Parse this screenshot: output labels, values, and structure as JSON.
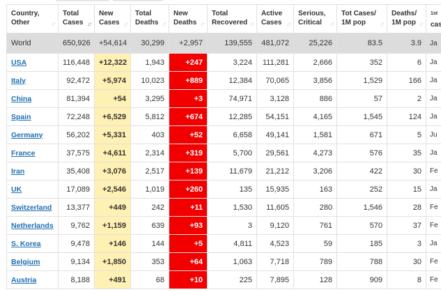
{
  "headers": [
    {
      "line1": "Country,",
      "line2": "Other"
    },
    {
      "line1": "Total",
      "line2": "Cases"
    },
    {
      "line1": "New",
      "line2": "Cases"
    },
    {
      "line1": "Total",
      "line2": "Deaths"
    },
    {
      "line1": "New",
      "line2": "Deaths"
    },
    {
      "line1": "Total",
      "line2": "Recovered"
    },
    {
      "line1": "Active",
      "line2": "Cases"
    },
    {
      "line1": "Serious,",
      "line2": "Critical"
    },
    {
      "line1": "Tot Cases/",
      "line2": "1M pop"
    },
    {
      "line1": "Deaths/",
      "line2": "1M pop"
    },
    {
      "line1": "1st",
      "line2": "cas"
    }
  ],
  "rows": [
    {
      "name": "World",
      "total_cases": "650,926",
      "new_cases": "+54,614",
      "total_deaths": "30,299",
      "new_deaths": "+2,957",
      "total_recovered": "139,555",
      "active_cases": "481,072",
      "serious": "25,226",
      "cases_per_1m": "83.5",
      "deaths_per_1m": "3.9",
      "first_case": "Ja"
    },
    {
      "name": "USA",
      "total_cases": "116,448",
      "new_cases": "+12,322",
      "total_deaths": "1,943",
      "new_deaths": "+247",
      "total_recovered": "3,224",
      "active_cases": "111,281",
      "serious": "2,666",
      "cases_per_1m": "352",
      "deaths_per_1m": "6",
      "first_case": "Ja"
    },
    {
      "name": "Italy",
      "total_cases": "92,472",
      "new_cases": "+5,974",
      "total_deaths": "10,023",
      "new_deaths": "+889",
      "total_recovered": "12,384",
      "active_cases": "70,065",
      "serious": "3,856",
      "cases_per_1m": "1,529",
      "deaths_per_1m": "166",
      "first_case": "Ja"
    },
    {
      "name": "China",
      "total_cases": "81,394",
      "new_cases": "+54",
      "total_deaths": "3,295",
      "new_deaths": "+3",
      "total_recovered": "74,971",
      "active_cases": "3,128",
      "serious": "886",
      "cases_per_1m": "57",
      "deaths_per_1m": "2",
      "first_case": "Ja"
    },
    {
      "name": "Spain",
      "total_cases": "72,248",
      "new_cases": "+6,529",
      "total_deaths": "5,812",
      "new_deaths": "+674",
      "total_recovered": "12,285",
      "active_cases": "54,151",
      "serious": "4,165",
      "cases_per_1m": "1,545",
      "deaths_per_1m": "124",
      "first_case": "Ja"
    },
    {
      "name": "Germany",
      "total_cases": "56,202",
      "new_cases": "+5,331",
      "total_deaths": "403",
      "new_deaths": "+52",
      "total_recovered": "6,658",
      "active_cases": "49,141",
      "serious": "1,581",
      "cases_per_1m": "671",
      "deaths_per_1m": "5",
      "first_case": "Ju"
    },
    {
      "name": "France",
      "total_cases": "37,575",
      "new_cases": "+4,611",
      "total_deaths": "2,314",
      "new_deaths": "+319",
      "total_recovered": "5,700",
      "active_cases": "29,561",
      "serious": "4,273",
      "cases_per_1m": "576",
      "deaths_per_1m": "35",
      "first_case": "Ja"
    },
    {
      "name": "Iran",
      "total_cases": "35,408",
      "new_cases": "+3,076",
      "total_deaths": "2,517",
      "new_deaths": "+139",
      "total_recovered": "11,679",
      "active_cases": "21,212",
      "serious": "3,206",
      "cases_per_1m": "422",
      "deaths_per_1m": "30",
      "first_case": "Fe"
    },
    {
      "name": "UK",
      "total_cases": "17,089",
      "new_cases": "+2,546",
      "total_deaths": "1,019",
      "new_deaths": "+260",
      "total_recovered": "135",
      "active_cases": "15,935",
      "serious": "163",
      "cases_per_1m": "252",
      "deaths_per_1m": "15",
      "first_case": "Ja"
    },
    {
      "name": "Switzerland",
      "total_cases": "13,377",
      "new_cases": "+449",
      "total_deaths": "242",
      "new_deaths": "+11",
      "total_recovered": "1,530",
      "active_cases": "11,605",
      "serious": "280",
      "cases_per_1m": "1,546",
      "deaths_per_1m": "28",
      "first_case": "Fe"
    },
    {
      "name": "Netherlands",
      "total_cases": "9,762",
      "new_cases": "+1,159",
      "total_deaths": "639",
      "new_deaths": "+93",
      "total_recovered": "3",
      "active_cases": "9,120",
      "serious": "761",
      "cases_per_1m": "570",
      "deaths_per_1m": "37",
      "first_case": "Fe"
    },
    {
      "name": "S. Korea",
      "total_cases": "9,478",
      "new_cases": "+146",
      "total_deaths": "144",
      "new_deaths": "+5",
      "total_recovered": "4,811",
      "active_cases": "4,523",
      "serious": "59",
      "cases_per_1m": "185",
      "deaths_per_1m": "3",
      "first_case": "Ja"
    },
    {
      "name": "Belgium",
      "total_cases": "9,134",
      "new_cases": "+1,850",
      "total_deaths": "353",
      "new_deaths": "+64",
      "total_recovered": "1,063",
      "active_cases": "7,718",
      "serious": "789",
      "cases_per_1m": "788",
      "deaths_per_1m": "30",
      "first_case": "Fe"
    },
    {
      "name": "Austria",
      "total_cases": "8,188",
      "new_cases": "+491",
      "total_deaths": "68",
      "new_deaths": "+10",
      "total_recovered": "225",
      "active_cases": "7,895",
      "serious": "128",
      "cases_per_1m": "909",
      "deaths_per_1m": "8",
      "first_case": "Fe"
    }
  ],
  "colors": {
    "new_cases_bg": "#fff1b3",
    "new_deaths_bg": "#f20000",
    "link": "#1f6fb2",
    "world_bg": "#dcdcdc"
  }
}
